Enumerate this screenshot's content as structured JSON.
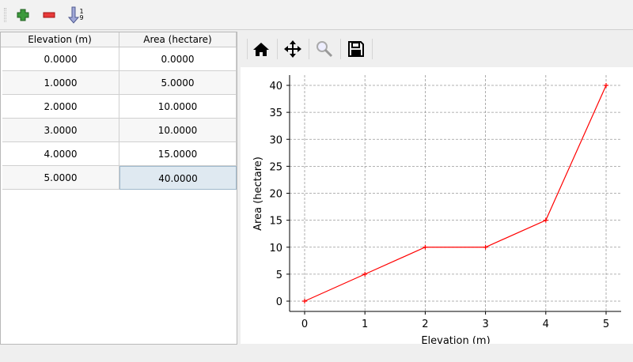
{
  "toolbar": {
    "buttons": [
      {
        "name": "add-row-button",
        "icon": "plus-icon"
      },
      {
        "name": "remove-row-button",
        "icon": "minus-icon"
      },
      {
        "name": "sort-button",
        "icon": "sort-ascending-icon"
      }
    ],
    "sort_digits": [
      "1",
      "9"
    ]
  },
  "table": {
    "headers": [
      "Elevation (m)",
      "Area (hectare)"
    ],
    "rows": [
      [
        "0.0000",
        "0.0000"
      ],
      [
        "1.0000",
        "5.0000"
      ],
      [
        "2.0000",
        "10.0000"
      ],
      [
        "3.0000",
        "10.0000"
      ],
      [
        "4.0000",
        "15.0000"
      ],
      [
        "5.0000",
        "40.0000"
      ]
    ],
    "selected_row": 5,
    "selected_col": 1
  },
  "plot_toolbar": {
    "buttons": [
      "home-icon",
      "pan-icon",
      "zoom-icon",
      "save-icon"
    ]
  },
  "chart_data": {
    "type": "line",
    "title": "",
    "xlabel": "Elevation (m)",
    "ylabel": "Area (hectare)",
    "x": [
      0,
      1,
      2,
      3,
      4,
      5
    ],
    "series": [
      {
        "values": [
          0,
          5,
          10,
          10,
          15,
          40
        ],
        "color": "#ff0000",
        "marker": "+"
      }
    ],
    "xlim": [
      -0.25,
      5.25
    ],
    "ylim": [
      -2,
      42
    ],
    "xticks": [
      0,
      1,
      2,
      3,
      4,
      5
    ],
    "yticks": [
      0,
      5,
      10,
      15,
      20,
      25,
      30,
      35,
      40
    ],
    "grid": true
  }
}
